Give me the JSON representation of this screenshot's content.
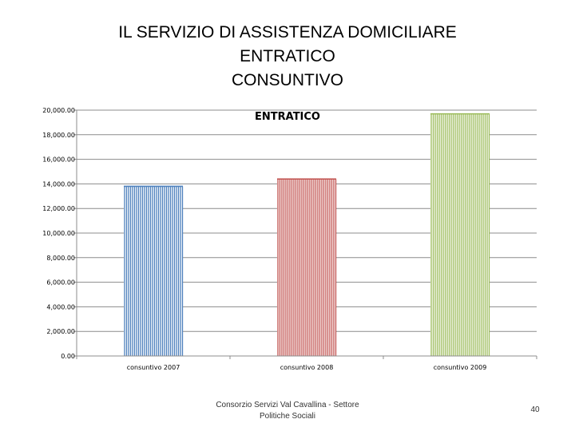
{
  "slide": {
    "title_lines": [
      "IL SERVIZIO DI ASSISTENZA DOMICILIARE",
      "ENTRATICO",
      "CONSUNTIVO"
    ],
    "footer_lines": [
      "Consorzio Servizi Val Cavallina - Settore",
      "Politiche Sociali"
    ],
    "page_number": "40"
  },
  "chart_data": {
    "type": "bar",
    "title": "ENTRATICO",
    "categories": [
      "consuntivo 2007",
      "consuntivo 2008",
      "consuntivo 2009"
    ],
    "values": [
      13800,
      14400,
      19700
    ],
    "colors": [
      "#4f81bd",
      "#c0504d",
      "#9bbb59"
    ],
    "ylim": [
      0,
      20000
    ],
    "yticks": [
      0,
      2000,
      4000,
      6000,
      8000,
      10000,
      12000,
      14000,
      16000,
      18000,
      20000
    ],
    "ytick_labels": [
      "0.00",
      "2,000.00",
      "4,000.00",
      "6,000.00",
      "8,000.00",
      "10,000.00",
      "12,000.00",
      "14,000.00",
      "16,000.00",
      "18,000.00",
      "20,000.00"
    ],
    "xlabel": "",
    "ylabel": "",
    "grid": true,
    "legend": "none"
  }
}
